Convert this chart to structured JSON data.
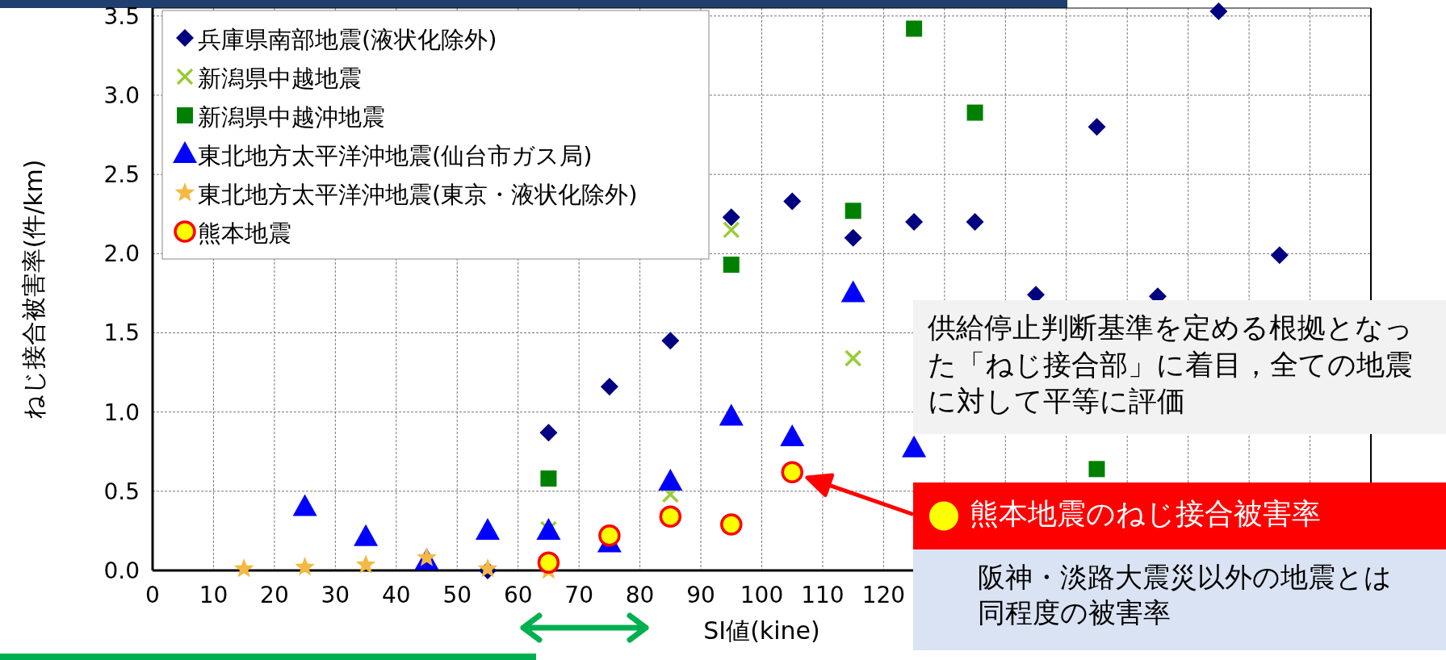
{
  "chart_data": {
    "type": "scatter",
    "xlabel": "SI値(kine)",
    "ylabel": "ねじ接合被害率(件/km)",
    "xlim": [
      0,
      200
    ],
    "ylim": [
      0,
      3.55
    ],
    "xticks": [
      0,
      10,
      20,
      30,
      40,
      50,
      60,
      70,
      80,
      90,
      100,
      110,
      120,
      {
        "value": 130,
        "label": null
      },
      {
        "value": 140,
        "label": null
      },
      {
        "value": 150,
        "label": null
      },
      {
        "value": 160,
        "label": null
      },
      {
        "value": 170,
        "label": null
      },
      {
        "value": 180,
        "label": null
      },
      {
        "value": 190,
        "label": null
      },
      {
        "value": 200,
        "label": null
      }
    ],
    "yticks": [
      {
        "value": 0,
        "label": "0.0"
      },
      {
        "value": 0.5,
        "label": "0.5"
      },
      {
        "value": 1,
        "label": "1.0"
      },
      {
        "value": 1.5,
        "label": "1.5"
      },
      {
        "value": 2,
        "label": "2.0"
      },
      {
        "value": 2.5,
        "label": "2.5"
      },
      {
        "value": 3,
        "label": "3.0"
      },
      {
        "value": 3.5,
        "label": "3.5"
      }
    ],
    "grid": true,
    "legend": "top left",
    "series": [
      {
        "name": "兵庫県南部地震(液状化除外)",
        "color": "#000080",
        "marker": "diamond",
        "x": [
          55,
          65,
          75,
          85,
          95,
          105,
          115,
          125,
          135,
          145,
          155,
          165,
          175,
          185
        ],
        "values": [
          0.0,
          0.87,
          1.16,
          1.45,
          2.23,
          2.33,
          2.1,
          2.2,
          2.2,
          1.74,
          2.8,
          1.73,
          3.53,
          1.99
        ]
      },
      {
        "name": "新潟県中越地震",
        "color": "#99cc33",
        "marker": "cross",
        "x": [
          65,
          85,
          95,
          115
        ],
        "values": [
          0.26,
          0.48,
          2.15,
          1.34
        ]
      },
      {
        "name": "新潟県中越沖地震",
        "color": "#008000",
        "marker": "square",
        "x": [
          65,
          95,
          115,
          125,
          135,
          155
        ],
        "values": [
          0.58,
          1.93,
          2.27,
          3.42,
          2.89,
          0.64
        ]
      },
      {
        "name": "東北地方太平洋沖地震(仙台市ガス局)",
        "color": "#0000ff",
        "marker": "triangle",
        "x": [
          25,
          35,
          45,
          55,
          65,
          75,
          85,
          95,
          105,
          115,
          125
        ],
        "values": [
          0.4,
          0.21,
          0.06,
          0.25,
          0.25,
          0.17,
          0.56,
          0.97,
          0.84,
          1.75,
          0.77
        ]
      },
      {
        "name": "東北地方太平洋沖地震(東京・液状化除外)",
        "color": "#f4b942",
        "marker": "star",
        "x": [
          15,
          25,
          35,
          45,
          55,
          65
        ],
        "values": [
          0.01,
          0.02,
          0.035,
          0.08,
          0.01,
          0.0
        ]
      },
      {
        "name": "熊本地震",
        "color": "#ffff00",
        "marker": "circle",
        "x": [
          65,
          75,
          85,
          95,
          105
        ],
        "values": [
          0.05,
          0.22,
          0.34,
          0.29,
          0.62
        ]
      }
    ],
    "annotations": [
      "供給停止判断基準を定める根拠となった「ねじ接合部」に着目，全ての地震に対して平等に評価",
      "熊本地震のねじ接合被害率",
      "阪神・淡路大震災以外の地震とは同程度の被害率"
    ]
  }
}
